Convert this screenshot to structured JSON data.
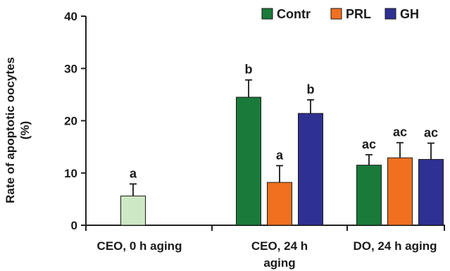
{
  "chart_data": {
    "type": "bar",
    "ylabel": "Rate of apoptotic oocytes (%)",
    "ylabel_lines": [
      "Rate of apoptotic oocytes",
      "(%)"
    ],
    "ylim": [
      0,
      40
    ],
    "yticks": [
      0,
      10,
      20,
      30,
      40
    ],
    "grid": false,
    "legend_position": "top-right",
    "legend": [
      {
        "name": "Contr",
        "color": "#1a7a3a"
      },
      {
        "name": "PRL",
        "color": "#f07020"
      },
      {
        "name": "GH",
        "color": "#2e3192"
      }
    ],
    "groups": [
      {
        "label_lines": [
          "CEO, 0 h aging"
        ],
        "bars": [
          {
            "series": "Contr",
            "value": 5.6,
            "error": 2.3,
            "sig": "a",
            "color": "#cde8c4"
          }
        ]
      },
      {
        "label_lines": [
          "CEO, 24 h",
          "aging"
        ],
        "bars": [
          {
            "series": "Contr",
            "value": 24.5,
            "error": 3.3,
            "sig": "b",
            "color": "#1a7a3a"
          },
          {
            "series": "PRL",
            "value": 8.2,
            "error": 3.2,
            "sig": "a",
            "color": "#f07020"
          },
          {
            "series": "GH",
            "value": 21.4,
            "error": 2.6,
            "sig": "b",
            "color": "#2e3192"
          }
        ]
      },
      {
        "label_lines": [
          "DO, 24 h aging"
        ],
        "bars": [
          {
            "series": "Contr",
            "value": 11.5,
            "error": 2.0,
            "sig": "ac",
            "color": "#1a7a3a"
          },
          {
            "series": "PRL",
            "value": 12.9,
            "error": 2.9,
            "sig": "ac",
            "color": "#f07020"
          },
          {
            "series": "GH",
            "value": 12.6,
            "error": 3.1,
            "sig": "ac",
            "color": "#2e3192"
          }
        ]
      }
    ]
  }
}
